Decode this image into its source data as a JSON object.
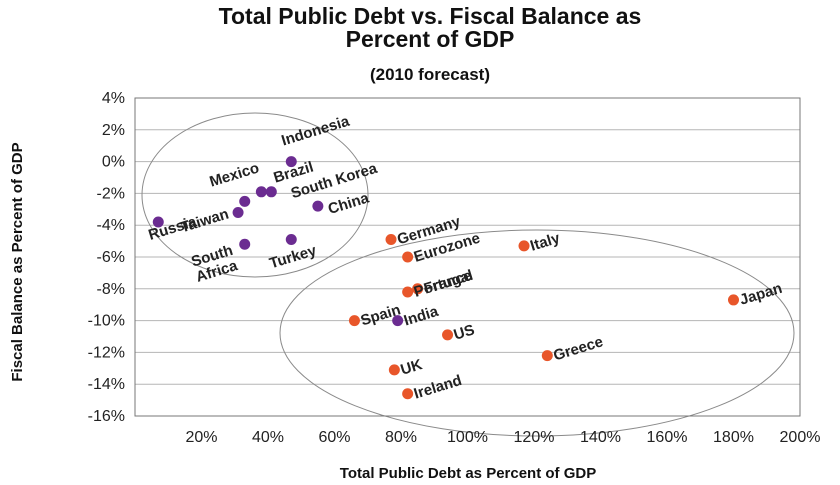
{
  "chart_data": {
    "type": "scatter",
    "title_lines": [
      "Total Public Debt vs. Fiscal Balance as",
      "Percent of GDP"
    ],
    "subtitle": "(2010 forecast)",
    "xlabel": "Total Public Debt as Percent of GDP",
    "ylabel": "Fiscal Balance as Percent of GDP",
    "xlim": [
      0,
      200
    ],
    "ylim": [
      -16,
      4
    ],
    "x_ticks": [
      20,
      40,
      60,
      80,
      100,
      120,
      140,
      160,
      180,
      200
    ],
    "x_tick_labels": [
      "20%",
      "40%",
      "60%",
      "80%",
      "100%",
      "120%",
      "140%",
      "160%",
      "180%",
      "200%"
    ],
    "y_ticks": [
      4,
      2,
      0,
      -2,
      -4,
      -6,
      -8,
      -10,
      -12,
      -14,
      -16
    ],
    "y_tick_labels": [
      "4%",
      "2%",
      "0%",
      "-2%",
      "-4%",
      "-6%",
      "-8%",
      "-10%",
      "-12%",
      "-14%",
      "-16%"
    ],
    "grid": "horizontal",
    "colors": {
      "emerging": "#6b2c91",
      "developed": "#e8562a"
    },
    "points": [
      {
        "label": "Indonesia",
        "x": 47,
        "y": 0,
        "group": "emerging"
      },
      {
        "label": "Brazil",
        "x": 41,
        "y": -1.9,
        "group": "emerging"
      },
      {
        "label": "Mexico",
        "x": 38,
        "y": -1.9,
        "group": "emerging"
      },
      {
        "label": "South Korea",
        "x": 33,
        "y": -2.5,
        "group": "emerging"
      },
      {
        "label": "Russia",
        "x": 7,
        "y": -3.8,
        "group": "emerging"
      },
      {
        "label": "Taiwan",
        "x": 31,
        "y": -3.2,
        "group": "emerging"
      },
      {
        "label": "China",
        "x": 55,
        "y": -2.8,
        "group": "emerging"
      },
      {
        "label": "South Africa",
        "x": 33,
        "y": -5.2,
        "group": "emerging"
      },
      {
        "label": "Turkey",
        "x": 47,
        "y": -4.9,
        "group": "emerging"
      },
      {
        "label": "India",
        "x": 79,
        "y": -10,
        "group": "emerging"
      },
      {
        "label": "Germany",
        "x": 77,
        "y": -4.9,
        "group": "developed"
      },
      {
        "label": "Eurozone",
        "x": 82,
        "y": -6,
        "group": "developed"
      },
      {
        "label": "Italy",
        "x": 117,
        "y": -5.3,
        "group": "developed"
      },
      {
        "label": "Portugal",
        "x": 82,
        "y": -8.2,
        "group": "developed"
      },
      {
        "label": "France",
        "x": 85,
        "y": -8,
        "group": "developed"
      },
      {
        "label": "Spain",
        "x": 66,
        "y": -10,
        "group": "developed"
      },
      {
        "label": "US",
        "x": 94,
        "y": -10.9,
        "group": "developed"
      },
      {
        "label": "Japan",
        "x": 180,
        "y": -8.7,
        "group": "developed"
      },
      {
        "label": "Greece",
        "x": 124,
        "y": -12.2,
        "group": "developed"
      },
      {
        "label": "UK",
        "x": 78,
        "y": -13.1,
        "group": "developed"
      },
      {
        "label": "Ireland",
        "x": 82,
        "y": -14.6,
        "group": "developed"
      }
    ]
  }
}
